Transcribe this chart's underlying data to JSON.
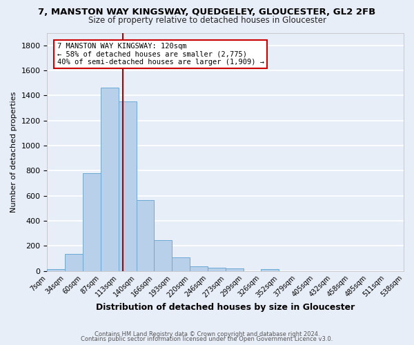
{
  "title": "7, MANSTON WAY KINGSWAY, QUEDGELEY, GLOUCESTER, GL2 2FB",
  "subtitle": "Size of property relative to detached houses in Gloucester",
  "xlabel": "Distribution of detached houses by size in Gloucester",
  "ylabel": "Number of detached properties",
  "bin_labels": [
    "7sqm",
    "34sqm",
    "60sqm",
    "87sqm",
    "113sqm",
    "140sqm",
    "166sqm",
    "193sqm",
    "220sqm",
    "246sqm",
    "273sqm",
    "299sqm",
    "326sqm",
    "352sqm",
    "379sqm",
    "405sqm",
    "432sqm",
    "458sqm",
    "485sqm",
    "511sqm",
    "538sqm"
  ],
  "bar_heights": [
    15,
    135,
    780,
    1460,
    1355,
    565,
    248,
    110,
    35,
    25,
    20,
    0,
    18,
    0,
    0,
    0,
    0,
    0,
    0,
    0,
    0
  ],
  "bar_color": "#b8d0ea",
  "bar_edge_color": "#6aaad4",
  "vline_color": "#aa0000",
  "property_size": 120,
  "annotation_title": "7 MANSTON WAY KINGSWAY: 120sqm",
  "annotation_line1": "← 58% of detached houses are smaller (2,775)",
  "annotation_line2": "40% of semi-detached houses are larger (1,909) →",
  "annotation_box_color": "white",
  "annotation_box_edge": "#cc0000",
  "ylim": [
    0,
    1900
  ],
  "yticks": [
    0,
    200,
    400,
    600,
    800,
    1000,
    1200,
    1400,
    1600,
    1800
  ],
  "footer1": "Contains HM Land Registry data © Crown copyright and database right 2024.",
  "footer2": "Contains public sector information licensed under the Open Government Licence v3.0.",
  "bg_color": "#e8eef8",
  "grid_color": "#ffffff",
  "bin_edges_values": [
    7,
    34,
    60,
    87,
    113,
    140,
    166,
    193,
    220,
    246,
    273,
    299,
    326,
    352,
    379,
    405,
    432,
    458,
    485,
    511,
    538
  ]
}
